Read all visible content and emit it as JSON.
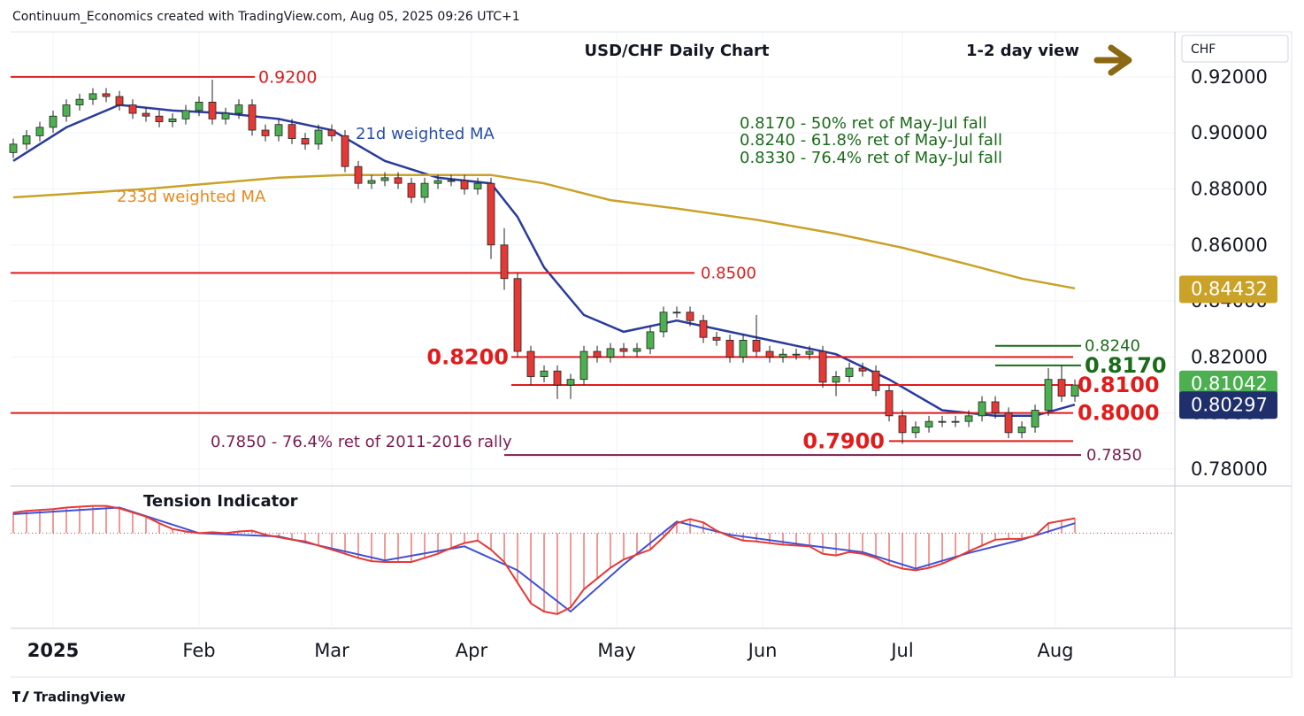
{
  "header": "Continuum_Economics created with TradingView.com, Aug 05, 2025 09:26 UTC+1",
  "footer": "TradingView",
  "chart_data": {
    "type": "candlestick",
    "title": "USD/CHF Daily Chart",
    "subtitle": "1-2 day view",
    "y_axis_label": "CHF",
    "annotations": [
      "0.8170 - 50% ret of May-Jul fall",
      "0.8240 - 61.8% ret of May-Jul fall",
      "0.8330 - 76.4% ret of May-Jul fall",
      "0.7850 - 76.4% ret of 2011-2016 rally"
    ],
    "xlim": [
      -0.2,
      87.53
    ],
    "xticks": [
      {
        "value": 3,
        "label": "2025"
      },
      {
        "value": 14,
        "label": "Feb"
      },
      {
        "value": 24,
        "label": "Mar"
      },
      {
        "value": 34.53,
        "label": "Apr"
      },
      {
        "value": 45.47,
        "label": "May"
      },
      {
        "value": 56.47,
        "label": "Jun"
      },
      {
        "value": 67,
        "label": "Jul"
      },
      {
        "value": 78.53,
        "label": "Aug"
      }
    ],
    "ylim": [
      0.7743,
      0.9364
    ],
    "yticks": [
      {
        "value": 0.92,
        "label": "0.92000"
      },
      {
        "value": 0.9,
        "label": "0.90000"
      },
      {
        "value": 0.88,
        "label": "0.88000"
      },
      {
        "value": 0.86,
        "label": "0.86000"
      },
      {
        "value": 0.84,
        "label": "0.84000"
      },
      {
        "value": 0.82,
        "label": "0.82000"
      },
      {
        "value": 0.8,
        "label": "0.80000"
      },
      {
        "value": 0.78,
        "label": "0.78000"
      }
    ],
    "grid": true,
    "candles": {
      "up_color": "#4caf50",
      "down_color": "#e53935",
      "open": [
        0.893,
        0.896,
        0.899,
        0.902,
        0.906,
        0.91,
        0.912,
        0.914,
        0.913,
        0.91,
        0.907,
        0.906,
        0.904,
        0.905,
        0.908,
        0.911,
        0.905,
        0.907,
        0.91,
        0.901,
        0.899,
        0.903,
        0.898,
        0.896,
        0.901,
        0.899,
        0.888,
        0.882,
        0.883,
        0.884,
        0.882,
        0.877,
        0.882,
        0.883,
        0.883,
        0.88,
        0.882,
        0.86,
        0.848,
        0.822,
        0.813,
        0.815,
        0.81,
        0.812,
        0.822,
        0.82,
        0.823,
        0.822,
        0.823,
        0.829,
        0.836,
        0.836,
        0.833,
        0.827,
        0.826,
        0.82,
        0.826,
        0.822,
        0.82,
        0.821,
        0.821,
        0.822,
        0.811,
        0.813,
        0.816,
        0.815,
        0.808,
        0.799,
        0.793,
        0.795,
        0.797,
        0.797,
        0.797,
        0.799,
        0.804,
        0.8,
        0.793,
        0.795,
        0.801,
        0.812,
        0.806
      ],
      "high": [
        0.898,
        0.901,
        0.904,
        0.908,
        0.912,
        0.914,
        0.916,
        0.916,
        0.915,
        0.912,
        0.909,
        0.908,
        0.907,
        0.91,
        0.913,
        0.919,
        0.909,
        0.912,
        0.912,
        0.903,
        0.905,
        0.905,
        0.9,
        0.903,
        0.903,
        0.901,
        0.89,
        0.885,
        0.886,
        0.886,
        0.884,
        0.884,
        0.885,
        0.885,
        0.885,
        0.884,
        0.884,
        0.866,
        0.85,
        0.824,
        0.817,
        0.817,
        0.814,
        0.824,
        0.824,
        0.825,
        0.825,
        0.825,
        0.831,
        0.838,
        0.838,
        0.838,
        0.835,
        0.829,
        0.828,
        0.828,
        0.835,
        0.824,
        0.823,
        0.823,
        0.824,
        0.824,
        0.815,
        0.818,
        0.818,
        0.817,
        0.81,
        0.801,
        0.797,
        0.799,
        0.799,
        0.799,
        0.801,
        0.806,
        0.806,
        0.802,
        0.797,
        0.803,
        0.816,
        0.817,
        0.812
      ],
      "low": [
        0.891,
        0.894,
        0.897,
        0.9,
        0.904,
        0.908,
        0.91,
        0.911,
        0.908,
        0.905,
        0.904,
        0.902,
        0.902,
        0.903,
        0.906,
        0.903,
        0.903,
        0.905,
        0.899,
        0.897,
        0.897,
        0.896,
        0.894,
        0.894,
        0.897,
        0.886,
        0.88,
        0.88,
        0.881,
        0.88,
        0.875,
        0.875,
        0.88,
        0.881,
        0.878,
        0.878,
        0.855,
        0.844,
        0.82,
        0.81,
        0.811,
        0.805,
        0.805,
        0.81,
        0.818,
        0.818,
        0.82,
        0.82,
        0.821,
        0.827,
        0.834,
        0.831,
        0.825,
        0.824,
        0.818,
        0.818,
        0.82,
        0.818,
        0.818,
        0.819,
        0.819,
        0.809,
        0.806,
        0.811,
        0.813,
        0.806,
        0.797,
        0.789,
        0.791,
        0.793,
        0.795,
        0.795,
        0.795,
        0.797,
        0.798,
        0.791,
        0.791,
        0.793,
        0.799,
        0.804,
        0.804
      ],
      "close": [
        0.896,
        0.899,
        0.902,
        0.906,
        0.91,
        0.912,
        0.914,
        0.913,
        0.91,
        0.907,
        0.906,
        0.904,
        0.905,
        0.908,
        0.911,
        0.905,
        0.907,
        0.91,
        0.901,
        0.899,
        0.903,
        0.898,
        0.896,
        0.901,
        0.899,
        0.888,
        0.882,
        0.883,
        0.884,
        0.882,
        0.877,
        0.882,
        0.883,
        0.883,
        0.88,
        0.882,
        0.86,
        0.848,
        0.822,
        0.813,
        0.815,
        0.81,
        0.812,
        0.822,
        0.82,
        0.823,
        0.822,
        0.823,
        0.829,
        0.836,
        0.836,
        0.833,
        0.827,
        0.826,
        0.82,
        0.826,
        0.822,
        0.82,
        0.821,
        0.821,
        0.822,
        0.811,
        0.813,
        0.816,
        0.815,
        0.808,
        0.799,
        0.793,
        0.795,
        0.797,
        0.797,
        0.797,
        0.799,
        0.804,
        0.8,
        0.793,
        0.795,
        0.801,
        0.812,
        0.806,
        0.81
      ]
    },
    "moving_averages": [
      {
        "name": "21d weighted MA",
        "color": "#2a3c9c",
        "label_color": "#2a4fa8",
        "x": [
          0,
          4,
          8,
          12,
          16,
          20,
          24,
          28,
          32,
          36,
          38,
          40,
          43,
          46,
          50,
          54,
          58,
          62,
          66,
          70,
          74,
          77,
          80
        ],
        "values": [
          0.89,
          0.902,
          0.91,
          0.908,
          0.907,
          0.905,
          0.901,
          0.89,
          0.884,
          0.882,
          0.87,
          0.852,
          0.835,
          0.829,
          0.833,
          0.829,
          0.825,
          0.821,
          0.812,
          0.801,
          0.799,
          0.799,
          0.803
        ]
      },
      {
        "name": "233d weighted MA",
        "color": "#c9a227",
        "label_color": "#e8891e",
        "x": [
          0,
          10,
          20,
          25,
          30,
          36,
          40,
          45,
          50,
          56,
          62,
          67,
          72,
          76,
          80
        ],
        "values": [
          0.877,
          0.88,
          0.884,
          0.885,
          0.885,
          0.885,
          0.882,
          0.876,
          0.873,
          0.869,
          0.864,
          0.859,
          0.853,
          0.848,
          0.8445
        ]
      }
    ],
    "levels": [
      {
        "value": 0.92,
        "label": "0.9200",
        "color": "#e21b1b"
      },
      {
        "value": 0.85,
        "label": "0.8500",
        "color": "#e21b1b"
      },
      {
        "value": 0.82,
        "label": "0.8200",
        "color": "#e21b1b"
      },
      {
        "value": 0.81,
        "label": "0.8100",
        "color": "#e21b1b"
      },
      {
        "value": 0.8,
        "label": "0.8000",
        "color": "#e21b1b"
      },
      {
        "value": 0.79,
        "label": "0.7900",
        "color": "#e21b1b"
      },
      {
        "value": 0.785,
        "label": "0.7850",
        "color": "#7b1c4f"
      },
      {
        "value": 0.824,
        "label": "0.8240",
        "color": "#1b6b1b"
      },
      {
        "value": 0.817,
        "label": "0.8170",
        "color": "#1b6b1b"
      }
    ],
    "price_labels": [
      {
        "value": 0.84432,
        "label": "0.84432",
        "color": "#c9a227"
      },
      {
        "value": 0.81042,
        "label": "0.81042",
        "color": "#4caf50"
      },
      {
        "value": 0.80297,
        "label": "0.80297",
        "color": "#1f2f6b"
      }
    ],
    "indicator": {
      "title": "Tension Indicator",
      "ylim": [
        -1.1,
        0.54
      ],
      "color": "#e53935",
      "values": [
        0.25,
        0.27,
        0.28,
        0.29,
        0.31,
        0.32,
        0.33,
        0.33,
        0.3,
        0.25,
        0.2,
        0.12,
        0.05,
        0.02,
        0.0,
        0.01,
        0.0,
        0.02,
        0.03,
        -0.02,
        -0.05,
        -0.08,
        -0.1,
        -0.15,
        -0.2,
        -0.25,
        -0.3,
        -0.34,
        -0.35,
        -0.35,
        -0.35,
        -0.3,
        -0.25,
        -0.18,
        -0.12,
        -0.09,
        -0.2,
        -0.35,
        -0.6,
        -0.85,
        -0.95,
        -0.98,
        -0.9,
        -0.68,
        -0.55,
        -0.42,
        -0.32,
        -0.26,
        -0.2,
        -0.05,
        0.12,
        0.17,
        0.13,
        0.03,
        -0.04,
        -0.09,
        -0.1,
        -0.12,
        -0.14,
        -0.15,
        -0.16,
        -0.25,
        -0.27,
        -0.23,
        -0.25,
        -0.3,
        -0.38,
        -0.43,
        -0.45,
        -0.42,
        -0.37,
        -0.3,
        -0.22,
        -0.15,
        -0.08,
        -0.07,
        -0.07,
        -0.03,
        0.12,
        0.15,
        0.18
      ],
      "signal": {
        "color": "#3f51d6",
        "x": [
          0,
          8,
          14,
          20,
          28,
          34,
          38,
          42,
          46,
          50,
          54,
          60,
          64,
          68,
          72,
          76,
          80
        ],
        "values": [
          0.23,
          0.31,
          0.0,
          -0.04,
          -0.33,
          -0.16,
          -0.45,
          -0.95,
          -0.38,
          0.14,
          -0.02,
          -0.15,
          -0.23,
          -0.43,
          -0.24,
          -0.08,
          0.12
        ]
      }
    }
  }
}
